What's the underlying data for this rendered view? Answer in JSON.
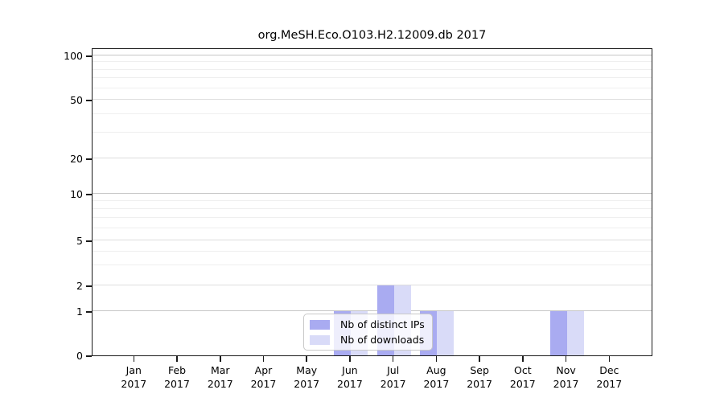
{
  "chart_data": {
    "type": "bar",
    "title": "org.MeSH.Eco.O103.H2.12009.db 2017",
    "categories": [
      "Jan",
      "Feb",
      "Mar",
      "Apr",
      "May",
      "Jun",
      "Jul",
      "Aug",
      "Sep",
      "Oct",
      "Nov",
      "Dec"
    ],
    "year": "2017",
    "series": [
      {
        "name": "Nb of distinct IPs",
        "color": "#a9abf1",
        "values": [
          0,
          0,
          0,
          0,
          0,
          1,
          2,
          1,
          0,
          0,
          1,
          0
        ]
      },
      {
        "name": "Nb of downloads",
        "color": "#d9dbf8",
        "values": [
          0,
          0,
          0,
          0,
          0,
          1,
          2,
          1,
          0,
          0,
          1,
          0
        ]
      }
    ],
    "y_axis": {
      "scale": "log1p",
      "ticks": [
        0,
        1,
        2,
        5,
        10,
        20,
        50,
        100
      ],
      "major_gridlines": [
        1,
        10,
        100
      ],
      "minor_gridlines": [
        3,
        4,
        6,
        7,
        8,
        9,
        30,
        40,
        60,
        70,
        80,
        90
      ],
      "range": [
        0,
        100
      ]
    },
    "x_axis": {
      "label_format": "month-over-year"
    },
    "grid": true,
    "legend_position": "lower-center"
  }
}
